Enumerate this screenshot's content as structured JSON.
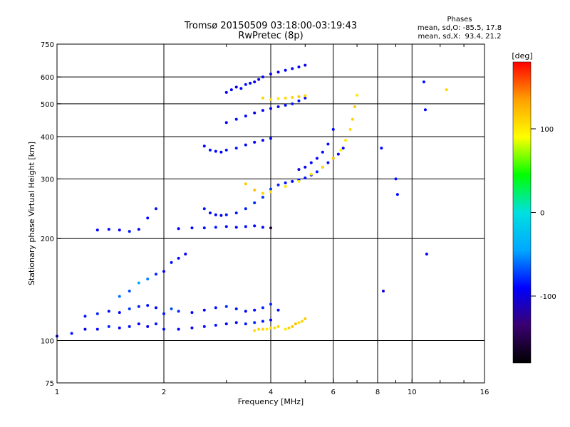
{
  "chart_data": {
    "type": "scatter",
    "title": "Tromsø 20150509 03:18:00-03:19:43",
    "subtitle": "RwPretec (8p)",
    "stats": {
      "heading": "Phases",
      "line_o": "mean, sd,O: -85.5, 17.8",
      "line_x": "mean, sd,X:  93.4, 21.2"
    },
    "xlabel": "Frequency [MHz]",
    "ylabel": "Stationary phase Virtual Height [km]",
    "x_scale": "log",
    "y_scale": "log",
    "xlim": [
      1,
      16
    ],
    "ylim": [
      75,
      750
    ],
    "x_ticks": [
      1,
      2,
      4,
      6,
      8,
      10,
      16
    ],
    "x_minor_ticks": [
      3,
      5,
      7,
      9,
      12,
      14
    ],
    "y_ticks": [
      75,
      100,
      200,
      300,
      400,
      500,
      600,
      750
    ],
    "grid": true,
    "colorbar": {
      "label": "[deg]",
      "ticks": [
        100,
        0,
        -100
      ],
      "range": [
        -180,
        180
      ],
      "colors": [
        "#000000",
        "#3a0070",
        "#0000ff",
        "#00a8ff",
        "#00e0e0",
        "#00ff00",
        "#ffff00",
        "#ffa000",
        "#ff0000"
      ]
    },
    "series": [
      {
        "x": [
          1.0,
          1.1,
          1.2,
          1.3,
          1.4,
          1.5,
          1.6,
          1.7,
          1.8,
          1.9,
          2.0,
          2.2,
          2.4,
          2.6,
          2.8,
          3.0,
          3.2,
          3.4,
          3.6,
          3.8,
          4.0
        ],
        "y": [
          103,
          105,
          108,
          108,
          110,
          109,
          110,
          112,
          110,
          112,
          108,
          108,
          109,
          110,
          111,
          112,
          113,
          112,
          113,
          114,
          115
        ],
        "phase": [
          -90,
          -85,
          -95,
          -88,
          -80,
          -92,
          -86,
          -90,
          -95,
          -84,
          -88,
          -90,
          -93,
          -87,
          -85,
          -90,
          -88,
          -84,
          -80,
          -86,
          -90
        ]
      },
      {
        "x": [
          1.2,
          1.3,
          1.4,
          1.5,
          1.6,
          1.7,
          1.8,
          1.9,
          2.0,
          2.1,
          2.2,
          2.4,
          2.6,
          2.8,
          3.0,
          3.2,
          3.4,
          3.6,
          3.8,
          4.0,
          4.2
        ],
        "y": [
          118,
          120,
          122,
          121,
          124,
          126,
          127,
          125,
          120,
          124,
          122,
          121,
          123,
          125,
          126,
          124,
          122,
          123,
          125,
          128,
          123
        ],
        "phase": [
          -85,
          -80,
          -88,
          -90,
          -75,
          -82,
          -86,
          -90,
          -84,
          -70,
          -80,
          -88,
          -92,
          -86,
          -78,
          -84,
          -90,
          -88,
          -82,
          -80,
          -86
        ]
      },
      {
        "x": [
          1.5,
          1.6,
          1.7,
          1.8,
          1.9,
          2.0,
          2.1,
          2.2,
          2.3
        ],
        "y": [
          135,
          140,
          148,
          152,
          157,
          160,
          170,
          175,
          180
        ],
        "phase": [
          -60,
          -70,
          -40,
          -55,
          -80,
          -90,
          -85,
          -88,
          -92
        ]
      },
      {
        "x": [
          1.3,
          1.4,
          1.5,
          1.6,
          1.7,
          1.8,
          1.9
        ],
        "y": [
          212,
          213,
          212,
          210,
          213,
          230,
          245
        ],
        "phase": [
          -90,
          -88,
          -92,
          -85,
          -90,
          -88,
          -86
        ]
      },
      {
        "x": [
          2.2,
          2.4,
          2.6,
          2.8,
          3.0,
          3.2,
          3.4,
          3.6,
          3.8,
          4.0
        ],
        "y": [
          214,
          215,
          215,
          216,
          217,
          216,
          217,
          218,
          216,
          215
        ],
        "phase": [
          -90,
          -88,
          -86,
          -84,
          -88,
          -90,
          -87,
          -89,
          -91,
          -160
        ]
      },
      {
        "x": [
          4.4,
          4.5,
          4.6,
          4.7,
          4.8,
          4.9,
          5.0
        ],
        "y": [
          108,
          109,
          110,
          112,
          113,
          114,
          116
        ],
        "phase": [
          100,
          110,
          115,
          120,
          105,
          110,
          115
        ]
      },
      {
        "x": [
          3.6,
          3.7,
          3.8,
          3.9,
          4.0,
          4.1,
          4.2
        ],
        "y": [
          107,
          108,
          108,
          108,
          109,
          109,
          110
        ],
        "phase": [
          105,
          108,
          110,
          100,
          106,
          104,
          108
        ]
      },
      {
        "x": [
          2.6,
          2.7,
          2.8,
          2.9,
          3.0,
          3.2,
          3.4,
          3.6,
          3.8,
          4.0,
          4.2,
          4.4,
          4.6,
          4.8,
          5.0,
          5.2,
          5.4,
          5.6,
          5.8,
          6.0,
          6.2,
          6.4
        ],
        "y": [
          245,
          238,
          235,
          234,
          235,
          238,
          245,
          255,
          265,
          280,
          288,
          292,
          295,
          298,
          302,
          308,
          315,
          325,
          335,
          345,
          355,
          370
        ],
        "phase": [
          -85,
          -88,
          -90,
          -92,
          -86,
          -84,
          -82,
          -80,
          -78,
          -75,
          -80,
          -85,
          -90,
          -88,
          -86,
          -84,
          -82,
          -80,
          -86,
          -88,
          -90,
          -92
        ]
      },
      {
        "x": [
          3.4,
          3.6,
          3.8,
          4.0,
          4.4,
          4.8,
          5.2,
          5.6,
          6.0,
          6.3,
          6.5,
          6.7,
          6.8,
          6.9,
          7.0
        ],
        "y": [
          290,
          278,
          272,
          275,
          285,
          295,
          310,
          325,
          345,
          365,
          390,
          420,
          450,
          490,
          530
        ],
        "phase": [
          115,
          120,
          110,
          105,
          100,
          95,
          100,
          105,
          110,
          95,
          100,
          105,
          110,
          115,
          100
        ]
      },
      {
        "x": [
          4.8,
          5.0,
          5.2,
          5.4,
          5.6,
          5.8,
          6.0
        ],
        "y": [
          320,
          325,
          335,
          345,
          360,
          380,
          420
        ],
        "phase": [
          -100,
          -95,
          -90,
          -92,
          -88,
          -86,
          -90
        ]
      },
      {
        "x": [
          2.6,
          2.7,
          2.8,
          2.9,
          3.0,
          3.2,
          3.4,
          3.6,
          3.8,
          4.0
        ],
        "y": [
          375,
          365,
          362,
          360,
          365,
          370,
          378,
          385,
          390,
          395
        ],
        "phase": [
          -88,
          -85,
          -90,
          -92,
          -86,
          -84,
          -88,
          -90,
          -92,
          -88
        ]
      },
      {
        "x": [
          3.0,
          3.2,
          3.4,
          3.6,
          3.8,
          4.0,
          4.2,
          4.4,
          4.6,
          4.8,
          5.0
        ],
        "y": [
          440,
          450,
          460,
          470,
          478,
          484,
          490,
          495,
          500,
          510,
          520
        ],
        "phase": [
          -90,
          -86,
          -88,
          -92,
          -95,
          -90,
          -88,
          -86,
          -84,
          -88,
          -90
        ]
      },
      {
        "x": [
          3.0,
          3.1,
          3.2,
          3.3,
          3.4,
          3.5,
          3.6,
          3.7,
          3.8
        ],
        "y": [
          540,
          550,
          560,
          555,
          570,
          575,
          580,
          590,
          600
        ],
        "phase": [
          -90,
          -92,
          -95,
          -88,
          -86,
          -90,
          -94,
          -96,
          -92
        ]
      },
      {
        "x": [
          4.0,
          4.2,
          4.4,
          4.6,
          4.8,
          5.0
        ],
        "y": [
          612,
          620,
          628,
          635,
          642,
          650
        ],
        "phase": [
          -95,
          -92,
          -90,
          -88,
          -94,
          -96
        ]
      },
      {
        "x": [
          3.8,
          4.0,
          4.2,
          4.4,
          4.6,
          4.8,
          5.0
        ],
        "y": [
          520,
          515,
          518,
          520,
          522,
          525,
          528
        ],
        "phase": [
          110,
          105,
          100,
          108,
          112,
          115,
          110
        ]
      },
      {
        "x": [
          8.2,
          8.3,
          9.0,
          9.1,
          10.8,
          10.9,
          11.0,
          12.5
        ],
        "y": [
          370,
          140,
          300,
          270,
          580,
          480,
          180,
          550
        ],
        "phase": [
          -90,
          -100,
          -85,
          -88,
          -86,
          -90,
          -92,
          110
        ]
      }
    ]
  }
}
